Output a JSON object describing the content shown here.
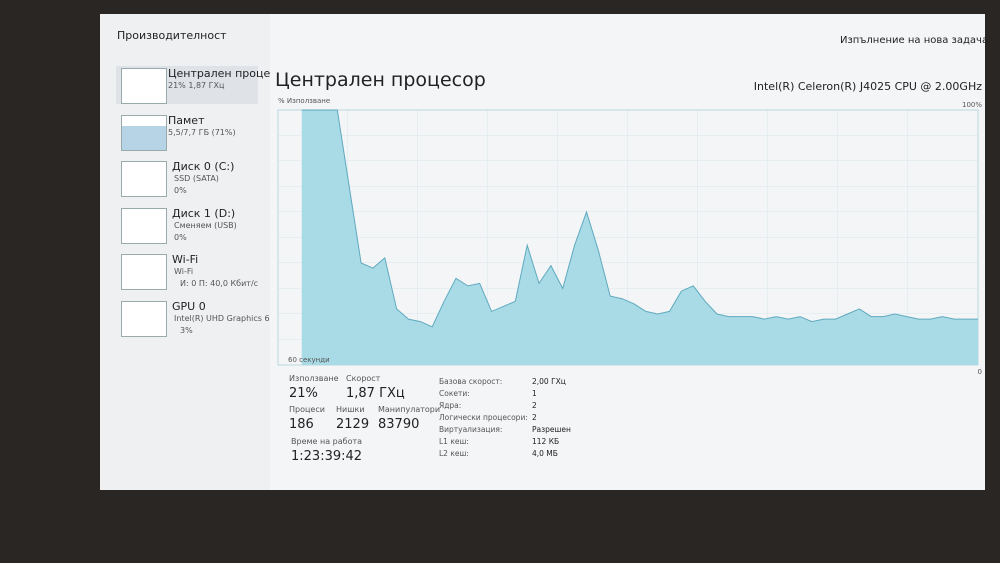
{
  "header": {
    "title": "Производителност",
    "action": "Изпълнение на нова задача"
  },
  "sidebar": [
    {
      "name": "Централен проце",
      "detail": "21% 1,87 ГХц"
    },
    {
      "name": "Памет",
      "detail": "5,5/7,7 ГБ (71%)"
    },
    {
      "name": "Диск 0 (C:)",
      "detail": "SSD (SATA)",
      "usage": "0%"
    },
    {
      "name": "Диск 1 (D:)",
      "detail": "Сменяем (USB)",
      "usage": "0%"
    },
    {
      "name": "Wi-Fi",
      "detail": "Wi-Fi",
      "usage": "И: 0 П: 40,0 Кбит/с"
    },
    {
      "name": "GPU 0",
      "detail": "Intel(R) UHD Graphics 6",
      "usage": "3%"
    }
  ],
  "main": {
    "title": "Централен процесор",
    "cpu": "Intel(R) Celeron(R) J4025 CPU @ 2.00GHz"
  },
  "chart_data": {
    "type": "area",
    "y_label": "% Използване",
    "x_label": "60 секунди",
    "ylim": [
      0,
      100
    ],
    "yticks": [
      0,
      {
        "value": 100,
        "label": "100%"
      }
    ],
    "color": "#a9dbe6",
    "line_color": "#5fa9bf",
    "values": [
      null,
      null,
      100,
      100,
      100,
      100,
      70,
      40,
      38,
      42,
      22,
      18,
      17,
      15,
      25,
      34,
      31,
      32,
      21,
      23,
      25,
      47,
      32,
      39,
      30,
      47,
      60,
      45,
      27,
      26,
      24,
      21,
      20,
      21,
      29,
      31,
      25,
      20,
      19,
      19,
      19,
      18,
      19,
      18,
      19,
      17,
      18,
      18,
      20,
      22,
      19,
      19,
      20,
      19,
      18,
      18,
      19,
      18,
      18,
      18
    ]
  },
  "stats": [
    {
      "label": "Използване",
      "value": "21%"
    },
    {
      "label": "Скорост",
      "value": "1,87 ГХц"
    },
    {
      "label": "Процеси",
      "value": "186"
    },
    {
      "label": "Нишки",
      "value": "2129"
    },
    {
      "label": "Манипулатори",
      "value": "83790"
    },
    {
      "label": "Време на работа",
      "value": "1:23:39:42"
    }
  ],
  "details": [
    {
      "label": "Базова скорост:",
      "value": "2,00 ГХц"
    },
    {
      "label": "Сокети:",
      "value": "1"
    },
    {
      "label": "Ядра:",
      "value": "2"
    },
    {
      "label": "Логически процесори:",
      "value": "2"
    },
    {
      "label": "Виртуализация:",
      "value": "Разрешен"
    },
    {
      "label": "L1 кеш:",
      "value": "112 КБ"
    },
    {
      "label": "L2 кеш:",
      "value": "4,0 МБ"
    }
  ]
}
